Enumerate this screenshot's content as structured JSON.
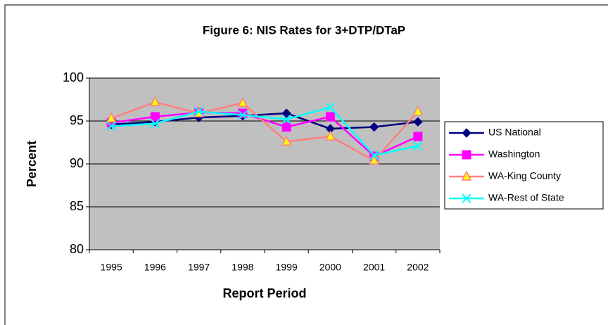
{
  "chart_data": {
    "type": "line",
    "title": "Figure 6: NIS Rates for 3+DTP/DTaP",
    "x_label": "Report Period",
    "y_label": "Percent",
    "categories": [
      "1995",
      "1996",
      "1997",
      "1998",
      "1999",
      "2000",
      "2001",
      "2002"
    ],
    "series": [
      {
        "name": "US National",
        "color": "#000080",
        "marker": "diamond",
        "marker_fill": "#000080",
        "values": [
          94.6,
          94.9,
          95.4,
          95.6,
          95.9,
          94.1,
          94.3,
          94.9
        ]
      },
      {
        "name": "Washington",
        "color": "#ff00ff",
        "marker": "square",
        "marker_fill": "#ff00ff",
        "values": [
          94.8,
          95.5,
          96.0,
          95.9,
          94.3,
          95.5,
          90.9,
          93.2
        ]
      },
      {
        "name": "WA-King County",
        "color": "#ff8080",
        "marker": "triangle",
        "marker_fill": "#ffff00",
        "values": [
          95.3,
          97.2,
          95.9,
          97.1,
          92.6,
          93.2,
          90.4,
          96.1
        ]
      },
      {
        "name": "WA-Rest of State",
        "color": "#00ffff",
        "marker": "x",
        "marker_fill": "none",
        "values": [
          94.4,
          94.7,
          96.1,
          95.7,
          95.2,
          96.6,
          91.0,
          92.1
        ]
      }
    ],
    "ylim": [
      80,
      100
    ],
    "yticks": [
      80,
      85,
      90,
      95,
      100
    ],
    "grid": true,
    "legend": "right"
  }
}
